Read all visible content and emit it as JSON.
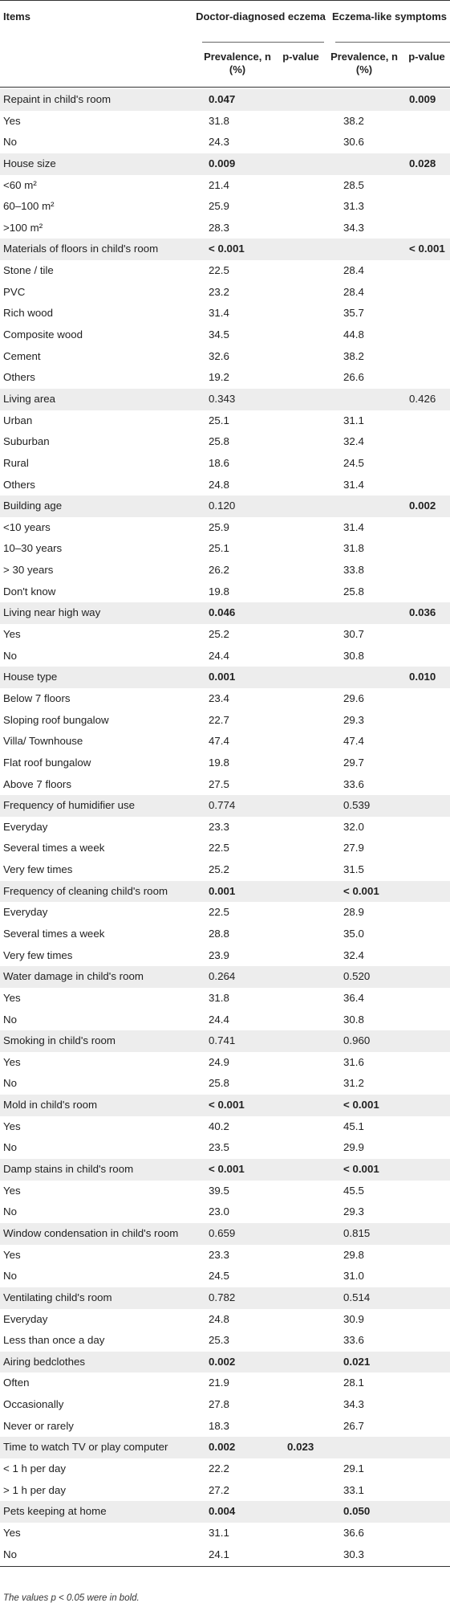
{
  "header": {
    "items": "Items",
    "group1": "Doctor-diagnosed eczema",
    "group2": "Eczema-like symptoms",
    "prev1": "Prevalence, n (%)",
    "p1": "p-value",
    "prev2": "Prevalence, n (%)",
    "p2": "p-value"
  },
  "rows": [
    {
      "item": "Repaint in child's room",
      "shade": true,
      "dp": "0.047",
      "dpb": true,
      "ev": "0.009",
      "evb": true
    },
    {
      "item": "Yes",
      "dp": "31.8",
      "ep": "38.2"
    },
    {
      "item": "No",
      "dp": "24.3",
      "ep": "30.6"
    },
    {
      "item": "House size",
      "shade": true,
      "dp": "0.009",
      "dpb": true,
      "ev": "0.028",
      "evb": true
    },
    {
      "item": "<60 m²",
      "dp": "21.4",
      "ep": "28.5"
    },
    {
      "item": "60–100 m²",
      "dp": "25.9",
      "ep": "31.3"
    },
    {
      "item": ">100 m²",
      "dp": "28.3",
      "ep": "34.3"
    },
    {
      "item": "Materials of floors in child's room",
      "shade": true,
      "dp": "< 0.001",
      "dpb": true,
      "ev": "< 0.001",
      "evb": true
    },
    {
      "item": "Stone / tile",
      "dp": "22.5",
      "ep": "28.4"
    },
    {
      "item": "PVC",
      "dp": "23.2",
      "ep": "28.4"
    },
    {
      "item": "Rich wood",
      "dp": "31.4",
      "ep": "35.7"
    },
    {
      "item": "Composite wood",
      "dp": "34.5",
      "ep": "44.8"
    },
    {
      "item": "Cement",
      "dp": "32.6",
      "ep": "38.2"
    },
    {
      "item": "Others",
      "dp": "19.2",
      "ep": "26.6"
    },
    {
      "item": "Living area",
      "shade": true,
      "dp": "0.343",
      "ev": "0.426"
    },
    {
      "item": "Urban",
      "dp": "25.1",
      "ep": "31.1"
    },
    {
      "item": "Suburban",
      "dp": "25.8",
      "ep": "32.4"
    },
    {
      "item": "Rural",
      "dp": "18.6",
      "ep": "24.5"
    },
    {
      "item": "Others",
      "dp": "24.8",
      "ep": "31.4"
    },
    {
      "item": "Building age",
      "shade": true,
      "dp": "0.120",
      "ev": "0.002",
      "evb": true
    },
    {
      "item": "<10 years",
      "dp": "25.9",
      "ep": "31.4"
    },
    {
      "item": "10–30 years",
      "dp": "25.1",
      "ep": "31.8"
    },
    {
      "item": "> 30 years",
      "dp": "26.2",
      "ep": "33.8"
    },
    {
      "item": "Don't know",
      "dp": "19.8",
      "ep": "25.8"
    },
    {
      "item": "Living near high way",
      "shade": true,
      "dp": "0.046",
      "dpb": true,
      "ev": "0.036",
      "evb": true
    },
    {
      "item": "Yes",
      "dp": "25.2",
      "ep": "30.7"
    },
    {
      "item": "No",
      "dp": "24.4",
      "ep": "30.8"
    },
    {
      "item": "House type",
      "shade": true,
      "dp": "0.001",
      "dpb": true,
      "ev": "0.010",
      "evb": true
    },
    {
      "item": "Below 7 floors",
      "dp": "23.4",
      "ep": "29.6"
    },
    {
      "item": "Sloping roof bungalow",
      "dp": "22.7",
      "ep": "29.3"
    },
    {
      "item": "Villa/ Townhouse",
      "dp": "47.4",
      "ep": "47.4"
    },
    {
      "item": "Flat roof bungalow",
      "dp": "19.8",
      "ep": "29.7"
    },
    {
      "item": "Above 7 floors",
      "dp": "27.5",
      "ep": "33.6"
    },
    {
      "item": "Frequency of humidifier use",
      "shade": true,
      "dp": "0.774",
      "ep": "0.539"
    },
    {
      "item": "Everyday",
      "dp": "23.3",
      "ep": "32.0"
    },
    {
      "item": "Several times a week",
      "dp": "22.5",
      "ep": "27.9"
    },
    {
      "item": "Very few times",
      "dp": "25.2",
      "ep": "31.5"
    },
    {
      "item": "Frequency of cleaning child's room",
      "shade": true,
      "dp": "0.001",
      "dpb": true,
      "ep": "< 0.001",
      "epb": true
    },
    {
      "item": "Everyday",
      "dp": "22.5",
      "ep": "28.9"
    },
    {
      "item": "Several times a week",
      "dp": "28.8",
      "ep": "35.0"
    },
    {
      "item": "Very few times",
      "dp": "23.9",
      "ep": "32.4"
    },
    {
      "item": "Water damage in child's room",
      "shade": true,
      "dp": "0.264",
      "ep": "0.520"
    },
    {
      "item": "Yes",
      "dp": "31.8",
      "ep": "36.4"
    },
    {
      "item": "No",
      "dp": "24.4",
      "ep": "30.8"
    },
    {
      "item": "Smoking in child's room",
      "shade": true,
      "dp": "0.741",
      "ep": "0.960"
    },
    {
      "item": "Yes",
      "dp": "24.9",
      "ep": "31.6"
    },
    {
      "item": "No",
      "dp": "25.8",
      "ep": "31.2"
    },
    {
      "item": "Mold in child's room",
      "shade": true,
      "dp": "< 0.001",
      "dpb": true,
      "ep": "< 0.001",
      "epb": true
    },
    {
      "item": "Yes",
      "dp": "40.2",
      "ep": "45.1"
    },
    {
      "item": "No",
      "dp": "23.5",
      "ep": "29.9"
    },
    {
      "item": "Damp stains in child's room",
      "shade": true,
      "dp": "< 0.001",
      "dpb": true,
      "ep": "< 0.001",
      "epb": true
    },
    {
      "item": "Yes",
      "dp": "39.5",
      "ep": "45.5"
    },
    {
      "item": "No",
      "dp": "23.0",
      "ep": "29.3"
    },
    {
      "item": "Window condensation in child's room",
      "shade": true,
      "dp": "0.659",
      "ep": "0.815"
    },
    {
      "item": "Yes",
      "dp": "23.3",
      "ep": "29.8"
    },
    {
      "item": "No",
      "dp": "24.5",
      "ep": "31.0"
    },
    {
      "item": "Ventilating child's room",
      "shade": true,
      "dp": "0.782",
      "ep": "0.514"
    },
    {
      "item": "Everyday",
      "dp": "24.8",
      "ep": "30.9"
    },
    {
      "item": "Less than once a day",
      "dp": "25.3",
      "ep": "33.6"
    },
    {
      "item": "Airing bedclothes",
      "shade": true,
      "dp": "0.002",
      "dpb": true,
      "ep": "0.021",
      "epb": true
    },
    {
      "item": "Often",
      "dp": "21.9",
      "ep": "28.1"
    },
    {
      "item": "Occasionally",
      "dp": "27.8",
      "ep": "34.3"
    },
    {
      "item": "Never or rarely",
      "dp": "18.3",
      "ep": "26.7"
    },
    {
      "item": "Time to watch TV or play computer",
      "shade": true,
      "dp": "0.002",
      "dpb": true,
      "dv": "0.023",
      "dvb": true
    },
    {
      "item": "< 1 h per day",
      "dp": "22.2",
      "ep": "29.1"
    },
    {
      "item": "> 1 h per day",
      "dp": "27.2",
      "ep": "33.1"
    },
    {
      "item": "Pets keeping at home",
      "shade": true,
      "dp": "0.004",
      "dpb": true,
      "ep": "0.050",
      "epb": true
    },
    {
      "item": "Yes",
      "dp": "31.1",
      "ep": "36.6"
    },
    {
      "item": "No",
      "dp": "24.1",
      "ep": "30.3"
    }
  ],
  "footnote": "The values p < 0.05 were in bold."
}
